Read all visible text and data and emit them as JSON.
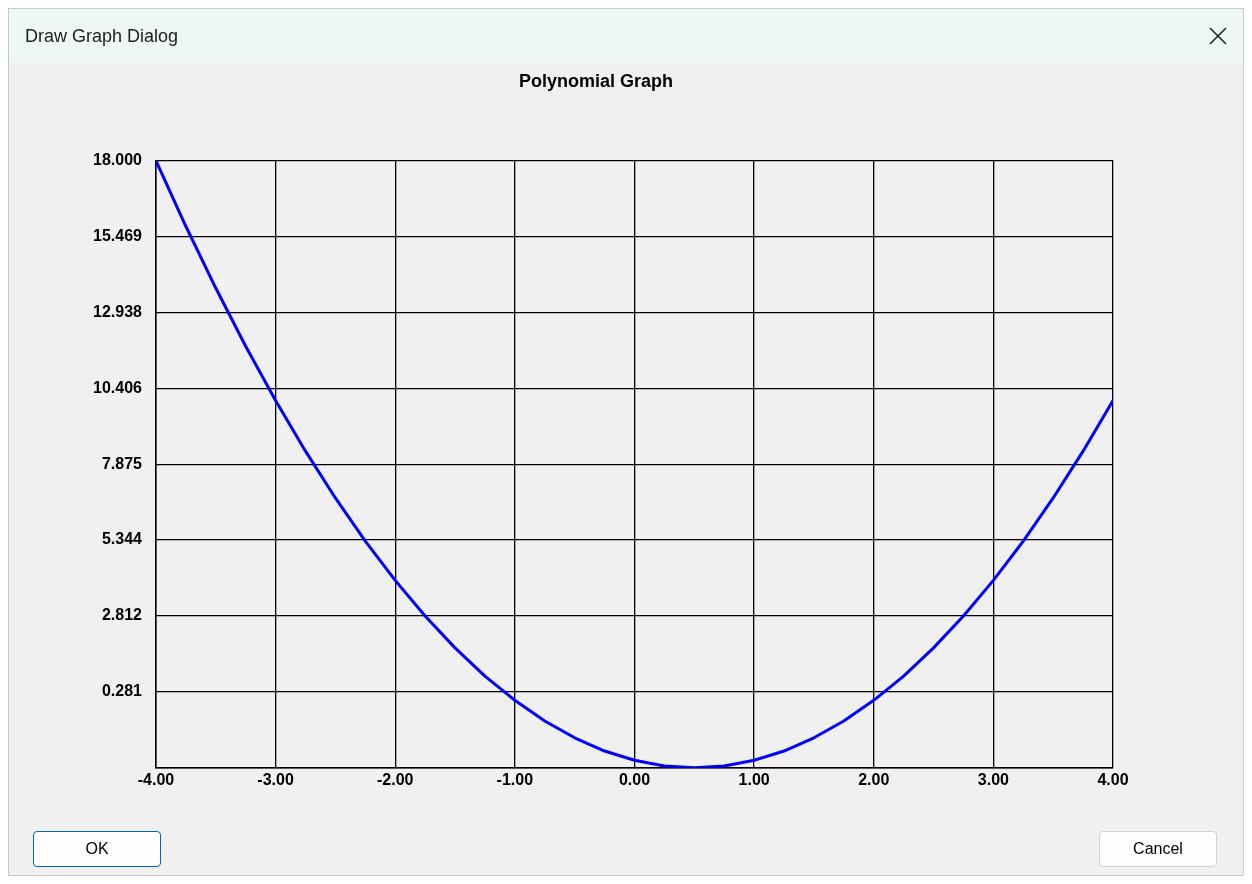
{
  "chart_data": {
    "type": "line",
    "title": "Polynomial Graph",
    "x": [
      -4,
      -3.75,
      -3.5,
      -3.25,
      -3,
      -2.75,
      -2.5,
      -2.25,
      -2,
      -1.75,
      -1.5,
      -1.25,
      -1,
      -0.75,
      -0.5,
      -0.25,
      0,
      0.25,
      0.5,
      0.75,
      1,
      1.25,
      1.5,
      1.75,
      2,
      2.25,
      2.5,
      2.75,
      3,
      3.25,
      3.5,
      3.75,
      4
    ],
    "series": [
      {
        "color": "#0000ff",
        "values": [
          18,
          15.81,
          13.75,
          11.81,
          10,
          8.31,
          6.75,
          5.31,
          4,
          2.81,
          1.75,
          0.81,
          0,
          -0.69,
          -1.25,
          -1.69,
          -2,
          -2.19,
          -2.25,
          -2.19,
          -2,
          -1.69,
          -1.25,
          -0.69,
          0,
          0.81,
          1.75,
          2.81,
          4,
          5.31,
          6.75,
          8.31,
          10
        ]
      }
    ],
    "xlim": [
      -4,
      4
    ],
    "xticks": [
      {
        "value": -4,
        "label": "-4.00"
      },
      {
        "value": -3,
        "label": "-3.00"
      },
      {
        "value": -2,
        "label": "-2.00"
      },
      {
        "value": -1,
        "label": "-1.00"
      },
      {
        "value": 0,
        "label": "0.00"
      },
      {
        "value": 1,
        "label": "1.00"
      },
      {
        "value": 2,
        "label": "2.00"
      },
      {
        "value": 3,
        "label": "3.00"
      },
      {
        "value": 4,
        "label": "4.00"
      }
    ],
    "ylim": [
      -2.25,
      18
    ],
    "yticks": [
      {
        "value": -2.25,
        "label": null
      },
      0.281,
      2.812,
      5.344,
      7.875,
      10.406,
      12.938,
      15.469,
      {
        "value": 18,
        "label": "18.000"
      }
    ],
    "grid": true,
    "legend": false,
    "marker": "none",
    "line_style": "solid",
    "annotations": [
      "Draw Graph Dialog",
      "OK",
      "Cancel"
    ]
  }
}
